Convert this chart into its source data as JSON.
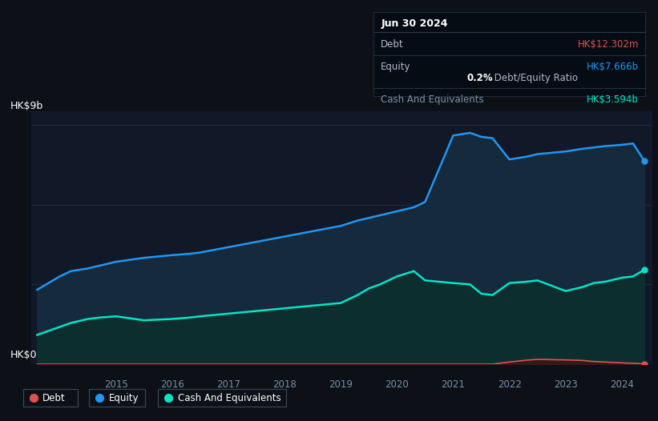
{
  "bg_color": "#0d1117",
  "plot_bg_color": "#111827",
  "grid_color": "#1c2e42",
  "ylabel_top": "HK$9b",
  "ylabel_bottom": "HK$0",
  "x_ticks": [
    2015,
    2016,
    2017,
    2018,
    2019,
    2020,
    2021,
    2022,
    2023,
    2024
  ],
  "tooltip": {
    "date": "Jun 30 2024",
    "debt_label": "Debt",
    "debt_value": "HK$12.302m",
    "equity_label": "Equity",
    "equity_value": "HK$7.666b",
    "ratio_bold": "0.2%",
    "ratio_rest": " Debt/Equity Ratio",
    "cash_label": "Cash And Equivalents",
    "cash_value": "HK$3.594b"
  },
  "legend": [
    {
      "label": "Debt",
      "color": "#e05252"
    },
    {
      "label": "Equity",
      "color": "#2196f3"
    },
    {
      "label": "Cash And Equivalents",
      "color": "#00e5c8"
    }
  ],
  "equity_color": "#2196f3",
  "equity_fill": "#152a3d",
  "cash_color": "#00e5c8",
  "cash_fill": "#0d2e2e",
  "debt_color": "#e05252",
  "debt_fill": "#3d1515",
  "years": [
    2013.6,
    2014.0,
    2014.2,
    2014.5,
    2014.7,
    2015.0,
    2015.5,
    2016.0,
    2016.3,
    2016.5,
    2017.0,
    2017.5,
    2018.0,
    2018.5,
    2019.0,
    2019.3,
    2019.5,
    2019.7,
    2020.0,
    2020.3,
    2020.5,
    2021.0,
    2021.3,
    2021.5,
    2021.7,
    2022.0,
    2022.3,
    2022.5,
    2023.0,
    2023.3,
    2023.5,
    2023.7,
    2024.0,
    2024.2,
    2024.4
  ],
  "equity": [
    2.8,
    3.3,
    3.5,
    3.6,
    3.7,
    3.85,
    4.0,
    4.1,
    4.15,
    4.2,
    4.4,
    4.6,
    4.8,
    5.0,
    5.2,
    5.4,
    5.5,
    5.6,
    5.75,
    5.9,
    6.1,
    8.6,
    8.7,
    8.55,
    8.5,
    7.7,
    7.8,
    7.9,
    8.0,
    8.1,
    8.15,
    8.2,
    8.25,
    8.3,
    7.65
  ],
  "cash": [
    1.1,
    1.4,
    1.55,
    1.7,
    1.75,
    1.8,
    1.65,
    1.7,
    1.75,
    1.8,
    1.9,
    2.0,
    2.1,
    2.2,
    2.3,
    2.6,
    2.85,
    3.0,
    3.3,
    3.5,
    3.15,
    3.05,
    3.0,
    2.65,
    2.6,
    3.05,
    3.1,
    3.15,
    2.75,
    2.9,
    3.05,
    3.1,
    3.25,
    3.3,
    3.55
  ],
  "debt": [
    0.0,
    0.0,
    0.0,
    0.0,
    0.0,
    0.0,
    0.0,
    0.0,
    0.0,
    0.0,
    0.0,
    0.0,
    0.0,
    0.0,
    0.0,
    0.0,
    0.0,
    0.0,
    0.0,
    0.0,
    0.0,
    0.0,
    0.0,
    0.0,
    0.0,
    0.08,
    0.15,
    0.18,
    0.16,
    0.14,
    0.1,
    0.08,
    0.05,
    0.03,
    0.012
  ],
  "ylim": [
    0,
    9.5
  ],
  "xlim": [
    2013.5,
    2024.55
  ]
}
